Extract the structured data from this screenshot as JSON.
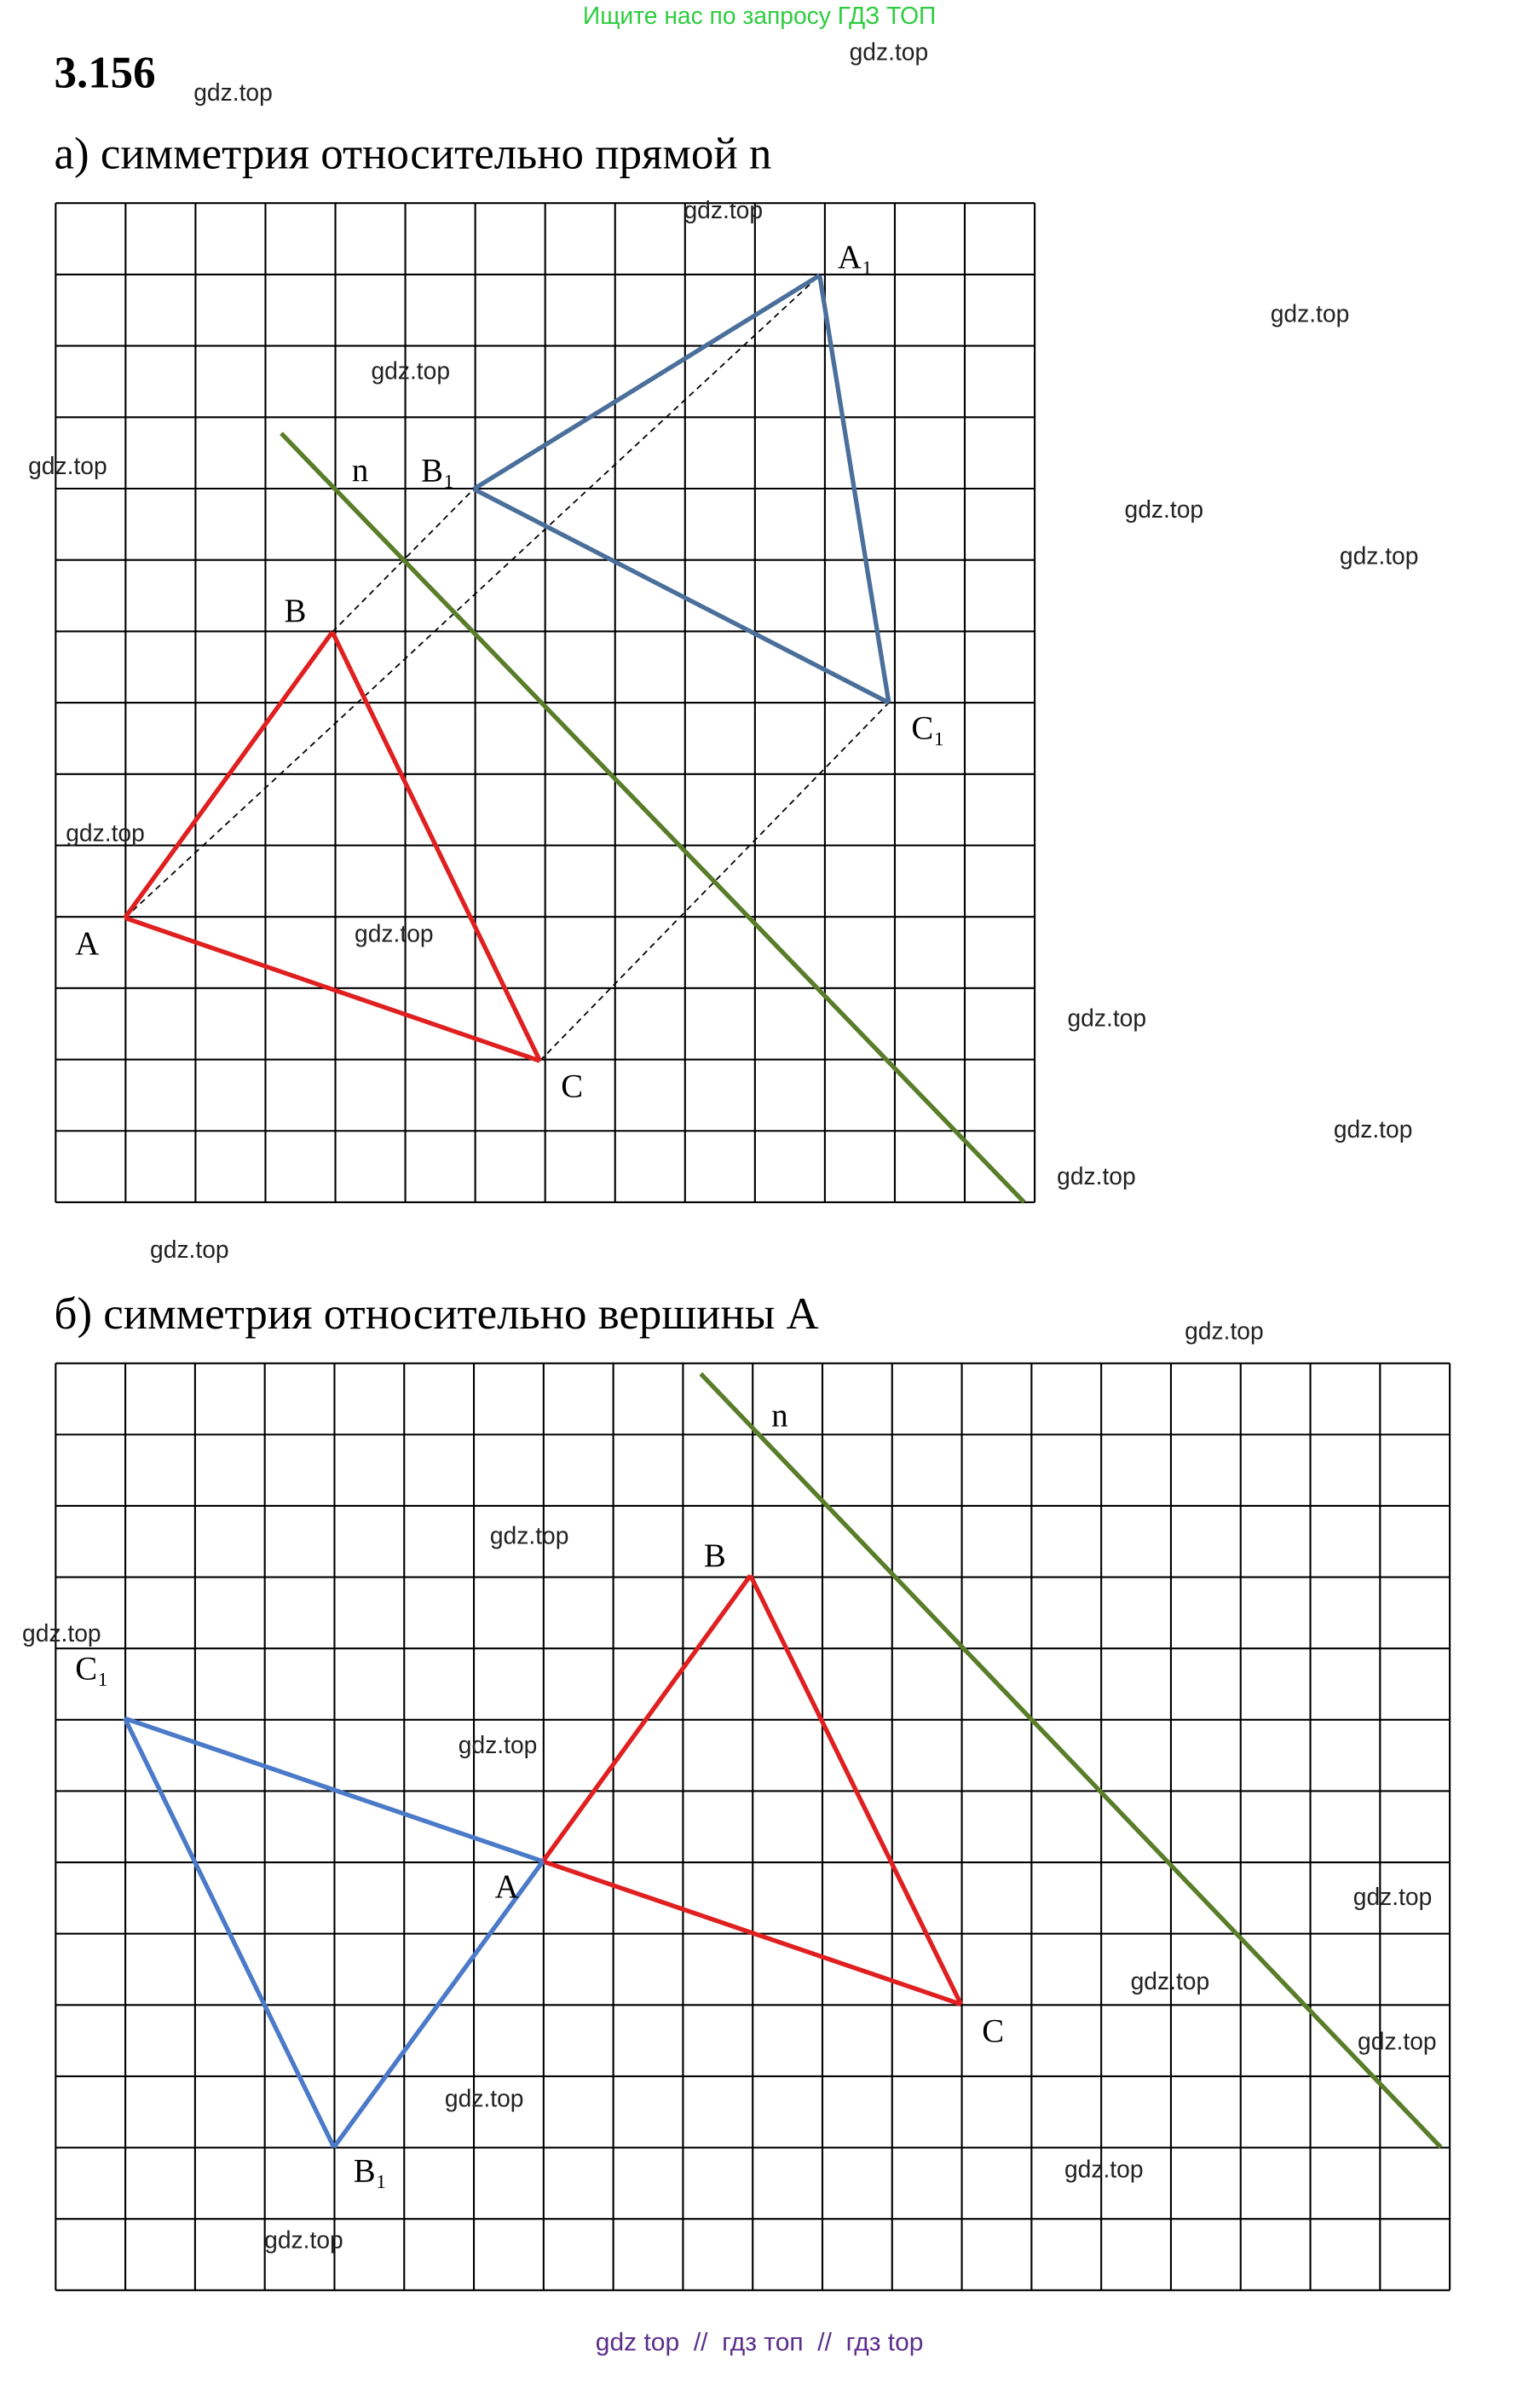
{
  "header": {
    "banner": "Ищите нас по запросу ГДЗ ТОП",
    "problem_number": "3.156"
  },
  "part_a": {
    "title": "а) симметрия относительно прямой n",
    "labels": [
      "A",
      "B",
      "C",
      "A₁",
      "B₁",
      "C₁",
      "n"
    ]
  },
  "part_b": {
    "title": "б) симметрия относительно вершины А",
    "labels": [
      "A",
      "B",
      "C",
      "B₁",
      "C₁",
      "n"
    ]
  },
  "watermarks": [
    "gdz.top",
    "gdz.top",
    "gdz.top",
    "gdz.top",
    "gdz.top",
    "gdz.top",
    "gdz.top",
    "gdz.top",
    "gdz.top",
    "gdz.top",
    "gdz.top",
    "gdz.top",
    "gdz.top",
    "gdz.top",
    "gdz.top",
    "gdz.top",
    "gdz.top",
    "gdz.top",
    "gdz.top",
    "gdz.top",
    "gdz.top",
    "gdz.top",
    "gdz.top",
    "gdz.top"
  ],
  "footer": "gdz top  //  гдз топ  //  гдз top"
}
